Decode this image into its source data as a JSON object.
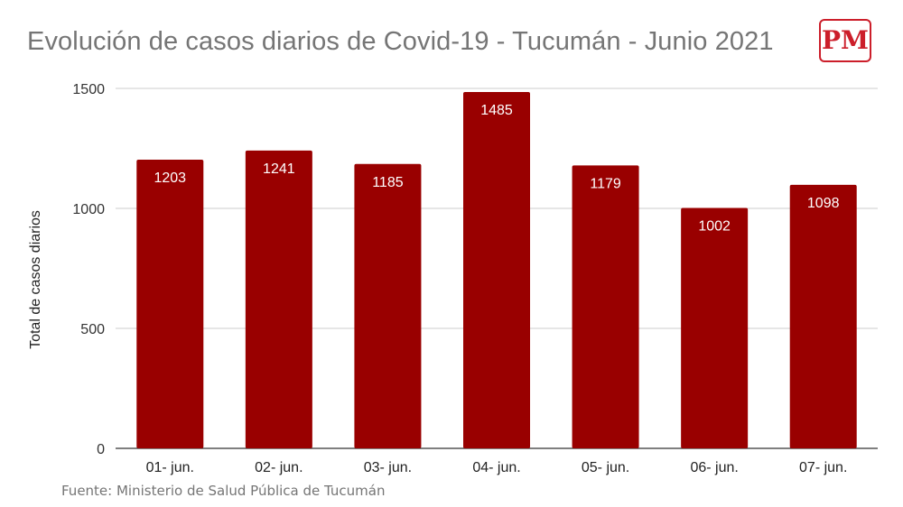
{
  "chart_data": {
    "type": "bar",
    "title": "Evolución de casos diarios de Covid-19 - Tucumán - Junio 2021",
    "xlabel": "",
    "ylabel": "Total de casos diarios",
    "categories": [
      "01- jun.",
      "02- jun.",
      "03- jun.",
      "04- jun.",
      "05- jun.",
      "06- jun.",
      "07- jun."
    ],
    "values": [
      1203,
      1241,
      1185,
      1485,
      1179,
      1002,
      1098
    ],
    "data_labels": [
      "1203",
      "1241",
      "1185",
      "1485",
      "1179",
      "1002",
      "1098"
    ],
    "ylim": [
      0,
      1500
    ],
    "yticks": [
      "0",
      "500",
      "1000",
      "1500"
    ],
    "grid": true,
    "bar_color": "#990000",
    "label_color": "#ffffff"
  },
  "logo": {
    "text": "PM",
    "color": "#cc1e2a"
  },
  "source": "Fuente: Ministerio de Salud Pública de Tucumán"
}
